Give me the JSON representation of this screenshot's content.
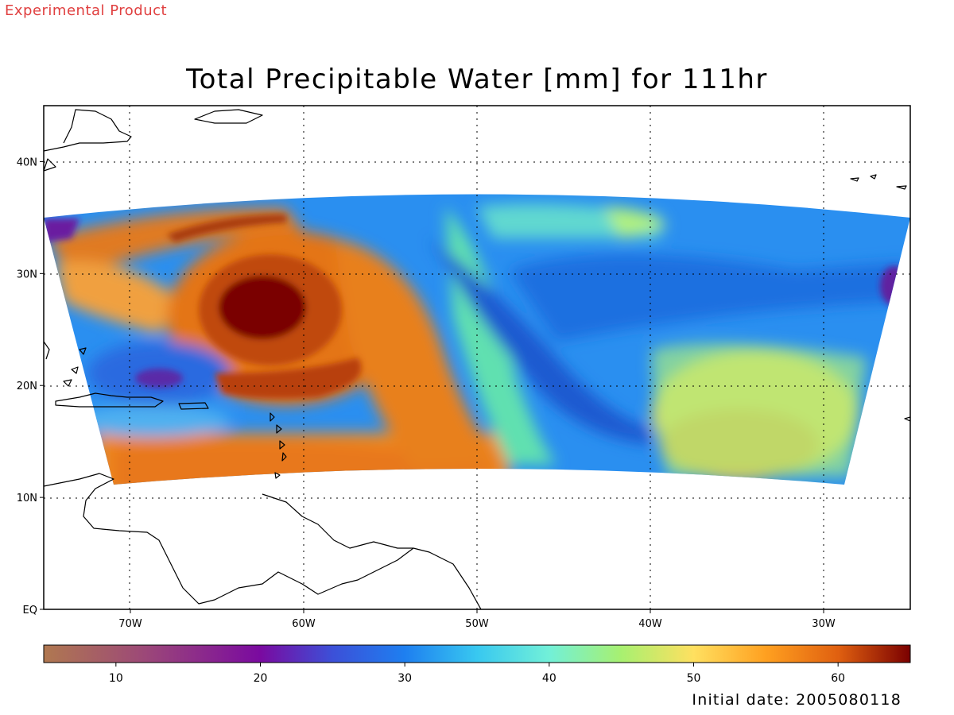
{
  "header": {
    "experimental_label": "Experimental Product",
    "title": "Total Precipitable Water [mm] for 111hr",
    "initial_date": "Initial date: 2005080118"
  },
  "map": {
    "lon_range": [
      -75,
      -25
    ],
    "lat_range": [
      0,
      45
    ],
    "lon_ticks": [
      {
        "value": -70,
        "label": "70W"
      },
      {
        "value": -60,
        "label": "60W"
      },
      {
        "value": -50,
        "label": "50W"
      },
      {
        "value": -40,
        "label": "40W"
      },
      {
        "value": -30,
        "label": "30W"
      }
    ],
    "lat_ticks": [
      {
        "value": 0,
        "label": "EQ"
      },
      {
        "value": 10,
        "label": "10N"
      },
      {
        "value": 20,
        "label": "20N"
      },
      {
        "value": 30,
        "label": "30N"
      },
      {
        "value": 40,
        "label": "40N"
      }
    ],
    "grid": "dotted",
    "colors": {
      "frame": "#000000",
      "coastline": "#000000"
    }
  },
  "colorbar": {
    "range": [
      5,
      65
    ],
    "ticks": [
      10,
      20,
      30,
      40,
      50,
      60
    ],
    "tick_labels": [
      "10",
      "20",
      "30",
      "40",
      "50",
      "60"
    ],
    "stops": [
      {
        "value": 5,
        "color": "#b07850"
      },
      {
        "value": 12,
        "color": "#9c4878"
      },
      {
        "value": 20,
        "color": "#7a0aa0"
      },
      {
        "value": 25,
        "color": "#3c50d8"
      },
      {
        "value": 30,
        "color": "#1e7ff0"
      },
      {
        "value": 35,
        "color": "#38c8f0"
      },
      {
        "value": 40,
        "color": "#72f0d8"
      },
      {
        "value": 45,
        "color": "#a8f070"
      },
      {
        "value": 50,
        "color": "#ffe060"
      },
      {
        "value": 55,
        "color": "#ffa020"
      },
      {
        "value": 60,
        "color": "#e06010"
      },
      {
        "value": 65,
        "color": "#7a0000"
      }
    ]
  }
}
